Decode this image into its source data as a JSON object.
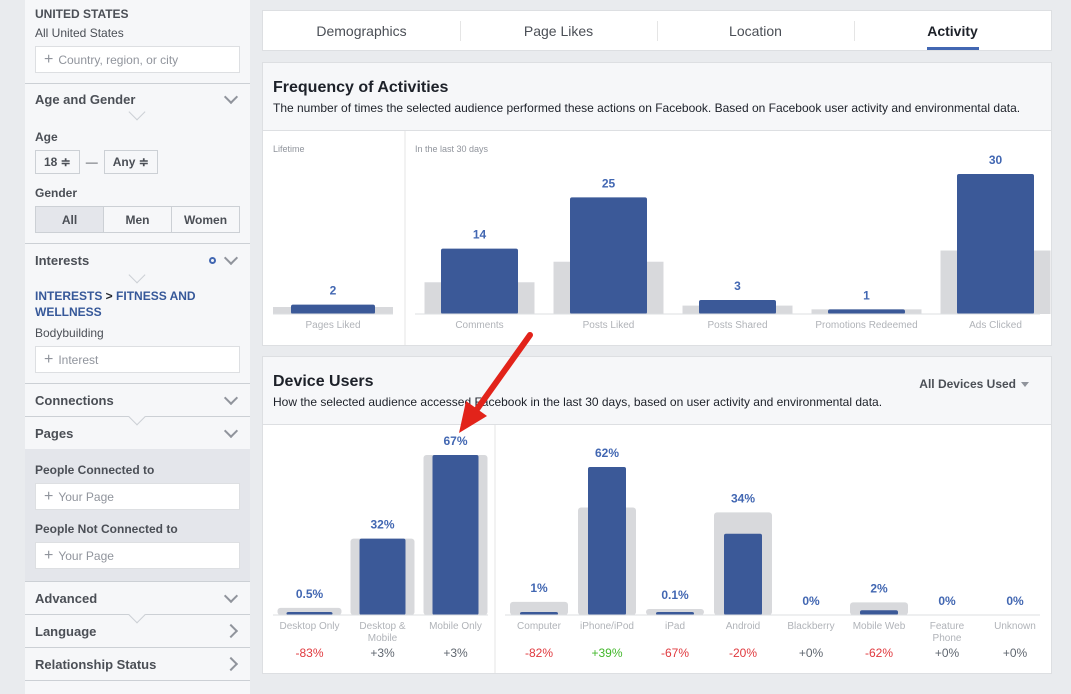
{
  "sidebar": {
    "location": {
      "country": "UNITED STATES",
      "scope": "All United States",
      "placeholder": "Country, region, or city"
    },
    "age_gender": {
      "title": "Age and Gender",
      "age_label": "Age",
      "age_min": "18 ≑",
      "age_max": "Any ≑",
      "age_dash": "—",
      "gender_label": "Gender",
      "genders": [
        "All",
        "Men",
        "Women"
      ]
    },
    "interests": {
      "title": "Interests",
      "path_a": "INTERESTS",
      "path_sep": " > ",
      "path_b": "FITNESS AND WELLNESS",
      "item": "Bodybuilding",
      "placeholder": "Interest"
    },
    "connections": {
      "title": "Connections"
    },
    "pages": {
      "title": "Pages",
      "connected_label": "People Connected to",
      "not_connected_label": "People Not Connected to",
      "placeholder": "Your Page"
    },
    "advanced": {
      "title": "Advanced"
    },
    "language": {
      "title": "Language"
    },
    "relationship": {
      "title": "Relationship Status"
    }
  },
  "tabs": [
    {
      "label": "Demographics",
      "active": false
    },
    {
      "label": "Page Likes",
      "active": false
    },
    {
      "label": "Location",
      "active": false
    },
    {
      "label": "Activity",
      "active": true
    }
  ],
  "frequency": {
    "title": "Frequency of Activities",
    "desc": "The number of times the selected audience performed these actions on Facebook. Based on Facebook user activity and environmental data."
  },
  "devices": {
    "title": "Device Users",
    "desc": "How the selected audience accessed Facebook in the last 30 days, based on user activity and environmental data.",
    "dropdown": "All Devices Used"
  },
  "colors": {
    "bar": "#3b5998",
    "baseline": "#d8d9dc",
    "positive": "#42b72a",
    "negative": "#e0393e",
    "neutral": "#606770",
    "arrow": "#e2231a"
  },
  "chart_data": [
    {
      "type": "bar",
      "groups": [
        {
          "label": "Lifetime",
          "categories": [
            "Pages Liked"
          ],
          "values": [
            2
          ],
          "display": [
            "2"
          ],
          "baseline": [
            1.5
          ]
        },
        {
          "label": "In the last 30 days",
          "categories": [
            "Comments",
            "Posts Liked",
            "Posts Shared",
            "Promotions Redeemed",
            "Ads Clicked"
          ],
          "values": [
            14,
            25,
            3,
            1,
            30
          ],
          "display": [
            "14",
            "25",
            "3",
            "1",
            "30"
          ],
          "baseline": [
            6.8,
            11.2,
            1.8,
            1,
            13.6
          ]
        }
      ]
    },
    {
      "type": "bar",
      "groups": [
        {
          "label": "",
          "categories": [
            "Desktop Only",
            "Desktop & Mobile",
            "Mobile Only"
          ],
          "values": [
            0.5,
            32,
            67
          ],
          "display": [
            "0.5%",
            "32%",
            "67%"
          ],
          "baseline": [
            3,
            32,
            67
          ],
          "diff": [
            "-83%",
            "+3%",
            "+3%"
          ]
        },
        {
          "label": "",
          "categories": [
            "Computer",
            "iPhone/iPod",
            "iPad",
            "Android",
            "Blackberry",
            "Mobile Web",
            "Feature Phone",
            "Unknown"
          ],
          "values": [
            1,
            62,
            0.1,
            34,
            0,
            2,
            0,
            0
          ],
          "display": [
            "1%",
            "62%",
            "0.1%",
            "34%",
            "0%",
            "2%",
            "0%",
            "0%"
          ],
          "baseline": [
            5.5,
            45,
            0.3,
            43,
            0,
            5.3,
            0,
            0
          ],
          "diff": [
            "-82%",
            "+39%",
            "-67%",
            "-20%",
            "+0%",
            "-62%",
            "+0%",
            "+0%"
          ]
        }
      ]
    }
  ]
}
